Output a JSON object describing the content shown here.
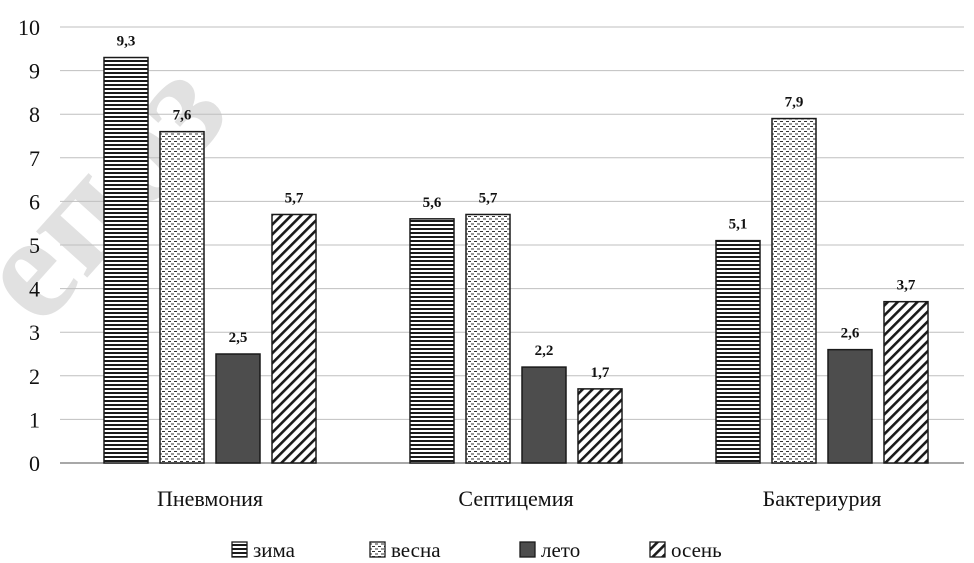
{
  "watermark": "епоз",
  "chart_data": {
    "type": "bar",
    "categories": [
      "Пневмония",
      "Септицемия",
      "Бактериурия"
    ],
    "series": [
      {
        "name": "зима",
        "pattern": "horizontal",
        "values": [
          9.3,
          5.6,
          5.1
        ],
        "labels": [
          "9,3",
          "5,6",
          "5,1"
        ]
      },
      {
        "name": "весна",
        "pattern": "dotted",
        "values": [
          7.6,
          5.7,
          7.9
        ],
        "labels": [
          "7,6",
          "5,7",
          "7,9"
        ]
      },
      {
        "name": "лето",
        "pattern": "solid",
        "values": [
          2.5,
          2.2,
          2.6
        ],
        "labels": [
          "2,5",
          "2,2",
          "2,6"
        ]
      },
      {
        "name": "осень",
        "pattern": "diagonal",
        "values": [
          5.7,
          1.7,
          3.7
        ],
        "labels": [
          "5,7",
          "1,7",
          "3,7"
        ]
      }
    ],
    "ylim": [
      0,
      10
    ],
    "yticks": [
      "0",
      "1",
      "2",
      "3",
      "4",
      "5",
      "6",
      "7",
      "8",
      "9",
      "10"
    ],
    "grid": true,
    "legend": "bottom",
    "colors": {
      "solid": "#4d4d4d",
      "stroke": "#1a1a1a",
      "grid": "#bfbfbf"
    }
  }
}
